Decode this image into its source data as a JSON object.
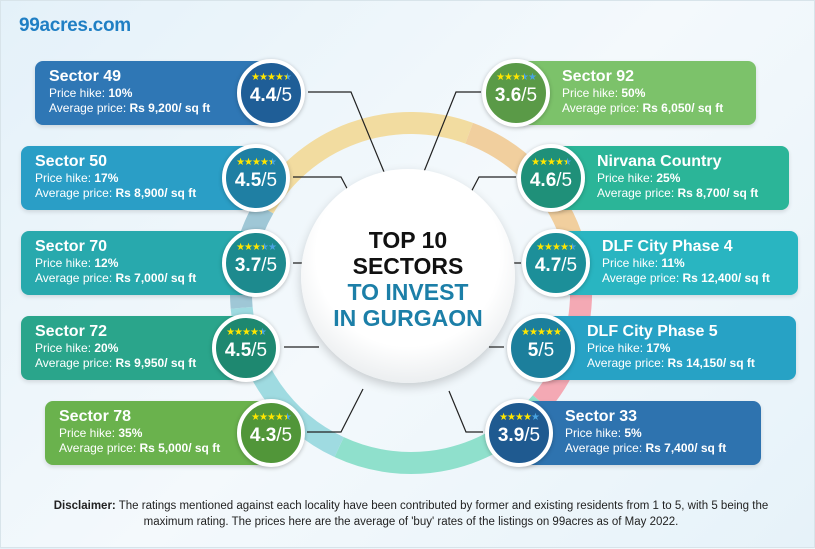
{
  "logo": "99acres.com",
  "title": {
    "line1": "TOP 10",
    "line2": "SECTORS",
    "line3": "TO INVEST",
    "line4": "IN GURGAON"
  },
  "labels": {
    "hike": "Price hike: ",
    "avg": "Average price: ",
    "out_of": "/5"
  },
  "left": [
    {
      "name": "Sector 49",
      "hike": "10%",
      "price": "Rs 9,200/ sq ft",
      "rating": 4.4,
      "rating_text": "4.4",
      "color": "#2f77b5",
      "badge": "#1f5e97"
    },
    {
      "name": "Sector 50",
      "hike": "17%",
      "price": "Rs 8,900/ sq ft",
      "rating": 4.5,
      "rating_text": "4.5",
      "color": "#2a9ec6",
      "badge": "#1f7fa3"
    },
    {
      "name": "Sector 70",
      "hike": "12%",
      "price": "Rs 7,000/ sq ft",
      "rating": 3.7,
      "rating_text": "3.7",
      "color": "#28a9ad",
      "badge": "#1d8a8e"
    },
    {
      "name": "Sector 72",
      "hike": "20%",
      "price": "Rs 9,950/ sq ft",
      "rating": 4.5,
      "rating_text": "4.5",
      "color": "#2aa58b",
      "badge": "#1e8870"
    },
    {
      "name": "Sector 78",
      "hike": "35%",
      "price": "Rs 5,000/ sq ft",
      "rating": 4.3,
      "rating_text": "4.3",
      "color": "#6ab24d",
      "badge": "#519639"
    }
  ],
  "right": [
    {
      "name": "Sector 92",
      "hike": "50%",
      "price": "Rs 6,050/ sq ft",
      "rating": 3.6,
      "rating_text": "3.6",
      "color": "#7cc26a",
      "badge": "#5a9a47"
    },
    {
      "name": "Nirvana Country",
      "hike": "25%",
      "price": "Rs 8,700/ sq ft",
      "rating": 4.6,
      "rating_text": "4.6",
      "color": "#2bb598",
      "badge": "#1f9079"
    },
    {
      "name": "DLF City Phase 4",
      "hike": "11%",
      "price": "Rs 12,400/ sq ft",
      "rating": 4.7,
      "rating_text": "4.7",
      "color": "#29b5c1",
      "badge": "#1c8f99"
    },
    {
      "name": "DLF City Phase 5",
      "hike": "17%",
      "price": "Rs 14,150/ sq ft",
      "rating": 5,
      "rating_text": "5",
      "color": "#27a2c5",
      "badge": "#1c7f9c"
    },
    {
      "name": "Sector 33",
      "hike": "5%",
      "price": "Rs 7,400/ sq ft",
      "rating": 3.9,
      "rating_text": "3.9",
      "color": "#2e73af",
      "badge": "#1f5a90"
    }
  ],
  "colors": {
    "star_full": "#ffe600",
    "star_empty": "#4aa3df",
    "title_accent": "#1c7fa8"
  },
  "ring_colors": [
    "#f2dca0",
    "#f1cf9e",
    "#f4a9b4",
    "#8fe0cc",
    "#9fdbe1",
    "#9fc7d6"
  ],
  "disclaimer": {
    "label": "Disclaimer:",
    "text": " The ratings mentioned against each locality have been contributed by former and existing residents from 1 to 5, with 5 being the maximum rating. The prices here are the average of 'buy' rates of the listings on 99acres as of May 2022."
  }
}
